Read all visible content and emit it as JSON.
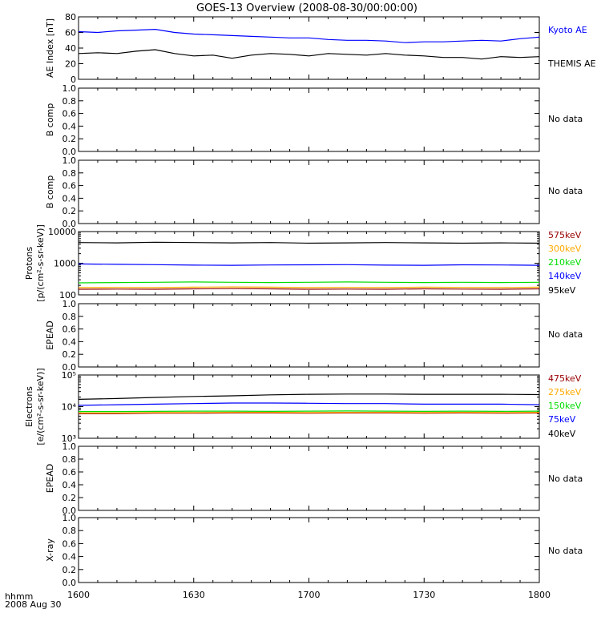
{
  "title": "GOES-13 Overview (2008-08-30/00:00:00)",
  "x_axis": {
    "ticks": [
      "1600",
      "1630",
      "1700",
      "1730",
      "1800"
    ],
    "label_line1": "hhmm",
    "label_line2": "2008 Aug 30"
  },
  "colors": {
    "black": "#000000",
    "blue": "#0000ff",
    "green": "#00dd00",
    "orange": "#ffaa00",
    "darkred": "#990000"
  },
  "chart_data": [
    {
      "type": "line",
      "ylabel": "AE Index [nT]",
      "ylim": [
        0,
        80
      ],
      "yticks": [
        "0",
        "20",
        "40",
        "60",
        "80"
      ],
      "x": [
        0,
        5,
        10,
        15,
        20,
        25,
        30,
        35,
        40,
        45,
        50,
        55,
        60,
        65,
        70,
        75,
        80,
        85,
        90,
        95,
        100,
        105,
        110,
        115,
        120
      ],
      "series": [
        {
          "name": "Kyoto AE",
          "color": "blue",
          "values": [
            61,
            60,
            62,
            63,
            64,
            60,
            58,
            57,
            56,
            55,
            54,
            53,
            53,
            51,
            50,
            50,
            49,
            47,
            48,
            48,
            49,
            50,
            49,
            52,
            54
          ]
        },
        {
          "name": "THEMIS AE",
          "color": "black",
          "values": [
            33,
            34,
            33,
            36,
            38,
            33,
            30,
            31,
            27,
            31,
            33,
            32,
            30,
            33,
            32,
            31,
            33,
            31,
            30,
            28,
            28,
            26,
            29,
            28,
            29
          ]
        }
      ]
    },
    {
      "type": "line",
      "ylabel": "B comp",
      "ylim": [
        0,
        1
      ],
      "yticks": [
        "0.0",
        "0.2",
        "0.4",
        "0.6",
        "0.8",
        "1.0"
      ],
      "no_data": "No data"
    },
    {
      "type": "line",
      "ylabel": "B comp",
      "ylim": [
        0,
        1
      ],
      "yticks": [
        "0.0",
        "0.2",
        "0.4",
        "0.6",
        "0.8",
        "1.0"
      ],
      "no_data": "No data"
    },
    {
      "type": "line",
      "log_scale": true,
      "ylabel_line1": "Protons",
      "ylabel_line2": "[p/(cm²-s-sr-keV)]",
      "ylim": [
        100,
        10000
      ],
      "yticks": [
        "100",
        "1000",
        "10000"
      ],
      "x": [
        0,
        10,
        20,
        30,
        40,
        50,
        60,
        70,
        80,
        90,
        100,
        110,
        120
      ],
      "series": [
        {
          "name": "575keV",
          "color": "darkred",
          "values": [
            150,
            152,
            150,
            155,
            158,
            155,
            150,
            152,
            150,
            155,
            152,
            150,
            155
          ]
        },
        {
          "name": "300keV",
          "color": "orange",
          "values": [
            170,
            172,
            170,
            175,
            178,
            175,
            170,
            172,
            170,
            175,
            172,
            170,
            175
          ]
        },
        {
          "name": "210keV",
          "color": "green",
          "values": [
            240,
            245,
            250,
            255,
            250,
            245,
            250,
            255,
            250,
            245,
            250,
            245,
            250
          ]
        },
        {
          "name": "140keV",
          "color": "blue",
          "values": [
            950,
            920,
            900,
            870,
            860,
            880,
            890,
            900,
            870,
            860,
            890,
            880,
            860
          ]
        },
        {
          "name": "95keV",
          "color": "black",
          "values": [
            4500,
            4400,
            4600,
            4500,
            4400,
            4500,
            4300,
            4400,
            4500,
            4400,
            4300,
            4400,
            4300
          ]
        }
      ]
    },
    {
      "type": "line",
      "ylabel": "EPEAD",
      "ylim": [
        0,
        1
      ],
      "yticks": [
        "0.0",
        "0.2",
        "0.4",
        "0.6",
        "0.8",
        "1.0"
      ],
      "no_data": "No data"
    },
    {
      "type": "line",
      "log_scale": true,
      "ylabel_line1": "Electrons",
      "ylabel_line2": "[e/(cm²-s-sr-keV)]",
      "ylim": [
        1000,
        100000
      ],
      "yticks": [
        "10³",
        "10⁴",
        "10⁵"
      ],
      "x": [
        0,
        10,
        20,
        30,
        40,
        50,
        60,
        70,
        80,
        90,
        100,
        110,
        120
      ],
      "series": [
        {
          "name": "475keV",
          "color": "darkred",
          "values": [
            6000,
            6000,
            6200,
            6200,
            6300,
            6300,
            6200,
            6300,
            6300,
            6200,
            6300,
            6200,
            6300
          ]
        },
        {
          "name": "275keV",
          "color": "orange",
          "values": [
            6300,
            6300,
            6500,
            6500,
            6600,
            6600,
            6500,
            6600,
            6600,
            6500,
            6600,
            6500,
            6600
          ]
        },
        {
          "name": "150keV",
          "color": "green",
          "values": [
            7000,
            7000,
            7100,
            7200,
            7200,
            7100,
            7200,
            7300,
            7200,
            7100,
            7200,
            7100,
            7200
          ]
        },
        {
          "name": "75keV",
          "color": "blue",
          "values": [
            11000,
            11500,
            12000,
            12500,
            13000,
            13000,
            12800,
            12500,
            12500,
            12000,
            12000,
            12000,
            11500
          ]
        },
        {
          "name": "40keV",
          "color": "black",
          "values": [
            17000,
            18000,
            19500,
            21000,
            22000,
            23500,
            24500,
            25000,
            25000,
            24500,
            24500,
            24500,
            24000
          ]
        }
      ]
    },
    {
      "type": "line",
      "ylabel": "EPEAD",
      "ylim": [
        0,
        1
      ],
      "yticks": [
        "0.0",
        "0.2",
        "0.4",
        "0.6",
        "0.8",
        "1.0"
      ],
      "no_data": "No data"
    },
    {
      "type": "line",
      "ylabel": "X-ray",
      "ylim": [
        0,
        1
      ],
      "yticks": [
        "0.0",
        "0.2",
        "0.4",
        "0.6",
        "0.8",
        "1.0"
      ],
      "no_data": "No data"
    }
  ]
}
